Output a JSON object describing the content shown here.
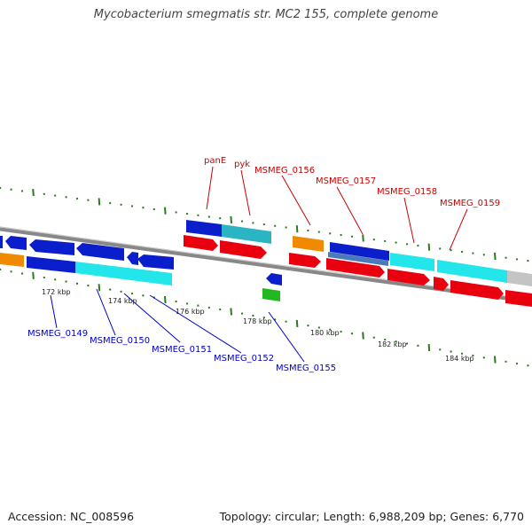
{
  "title": "Mycobacterium smegmatis str. MC2 155, complete genome",
  "footer": {
    "accession": "Accession: NC_008596",
    "summary": "Topology: circular; Length: 6,988,209 bp; Genes: 6,770"
  },
  "colors": {
    "forward_label": "#cc0000",
    "reverse_label": "#0000cc",
    "backbone": "#888888",
    "ticks": "#2a7a1e"
  },
  "scale_labels": [
    "172 kbp",
    "174 kbp",
    "176 kbp",
    "178 kbp",
    "180 kbp",
    "182 kbp",
    "184 kbp"
  ],
  "forward_gene_labels": [
    "panE",
    "pyk",
    "MSMEG_0156",
    "MSMEG_0157",
    "MSMEG_0158",
    "MSMEG_0159"
  ],
  "reverse_gene_labels": [
    "MSMEG_0149",
    "MSMEG_0150",
    "MSMEG_0151",
    "MSMEG_0152",
    "MSMEG_0155"
  ]
}
